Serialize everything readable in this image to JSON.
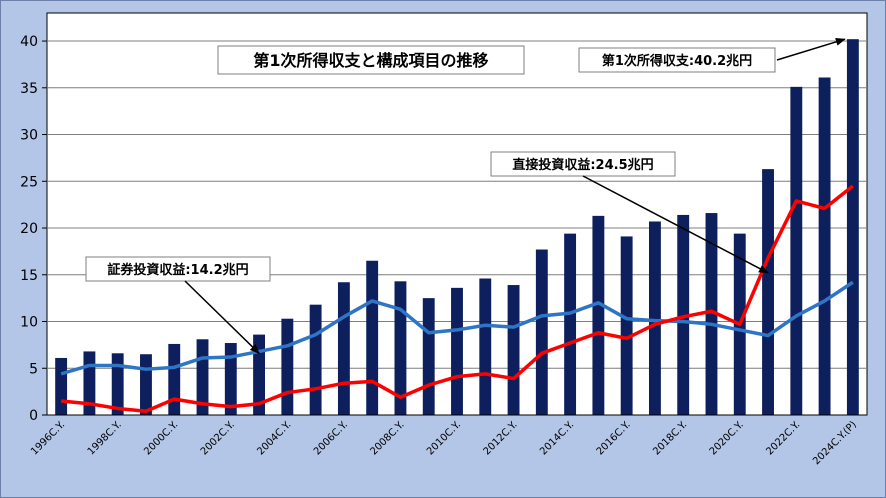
{
  "chart_data": {
    "type": "bar",
    "title": "第1次所得収支と構成項目の推移",
    "categories": [
      "1996C.Y.",
      "1997C.Y.",
      "1998C.Y.",
      "1999C.Y.",
      "2000C.Y.",
      "2001C.Y.",
      "2002C.Y.",
      "2003C.Y.",
      "2004C.Y.",
      "2005C.Y.",
      "2006C.Y.",
      "2007C.Y.",
      "2008C.Y.",
      "2009C.Y.",
      "2010C.Y.",
      "2011C.Y.",
      "2012C.Y.",
      "2013C.Y.",
      "2014C.Y.",
      "2015C.Y.",
      "2016C.Y.",
      "2017C.Y.",
      "2018C.Y.",
      "2019C.Y.",
      "2020C.Y.",
      "2021C.Y.",
      "2022C.Y.",
      "2023C.Y.",
      "2024C.Y.(P)"
    ],
    "x_tick_labels": [
      "1996C.Y.",
      "1998C.Y.",
      "2000C.Y.",
      "2002C.Y.",
      "2004C.Y.",
      "2006C.Y.",
      "2008C.Y.",
      "2010C.Y.",
      "2012C.Y.",
      "2014C.Y.",
      "2016C.Y.",
      "2018C.Y.",
      "2020C.Y.",
      "2022C.Y.",
      "2024C.Y.(P)"
    ],
    "y_ticks": [
      "0",
      "5",
      "10",
      "15",
      "20",
      "25",
      "30",
      "35",
      "40"
    ],
    "ylim": [
      0,
      43
    ],
    "grid": "horizontal",
    "series": [
      {
        "kind": "bar",
        "color": "#0d1f5c",
        "values": [
          6.1,
          6.8,
          6.6,
          6.5,
          7.6,
          8.1,
          7.7,
          8.6,
          10.3,
          11.8,
          14.2,
          16.5,
          14.3,
          12.5,
          13.6,
          14.6,
          13.9,
          17.7,
          19.4,
          21.3,
          19.1,
          20.7,
          21.4,
          21.6,
          19.4,
          26.3,
          35.1,
          36.1,
          40.2
        ]
      },
      {
        "kind": "line",
        "color": "#2e75c6",
        "values": [
          4.4,
          5.3,
          5.3,
          4.9,
          5.1,
          6.1,
          6.2,
          6.8,
          7.4,
          8.6,
          10.5,
          12.2,
          11.3,
          8.8,
          9.1,
          9.6,
          9.4,
          10.6,
          10.9,
          12.0,
          10.3,
          10.1,
          10.0,
          9.7,
          9.1,
          8.5,
          10.6,
          12.2,
          14.2
        ]
      },
      {
        "kind": "line",
        "color": "#ff0000",
        "values": [
          1.5,
          1.2,
          0.7,
          0.4,
          1.7,
          1.2,
          0.9,
          1.2,
          2.4,
          2.8,
          3.4,
          3.6,
          1.9,
          3.2,
          4.1,
          4.4,
          3.9,
          6.6,
          7.7,
          8.8,
          8.2,
          9.7,
          10.5,
          11.1,
          9.7,
          16.8,
          22.9,
          22.1,
          24.5
        ]
      }
    ],
    "annotations": [
      {
        "text": "第1次所得収支:40.2兆円",
        "target_index": 28,
        "target_value": 40.2
      },
      {
        "text": "直接投資収益:24.5兆円",
        "target_index": 25,
        "target_value": 15.2
      },
      {
        "text": "証券投資収益:14.2兆円",
        "target_index": 7,
        "target_value": 6.6
      }
    ]
  }
}
